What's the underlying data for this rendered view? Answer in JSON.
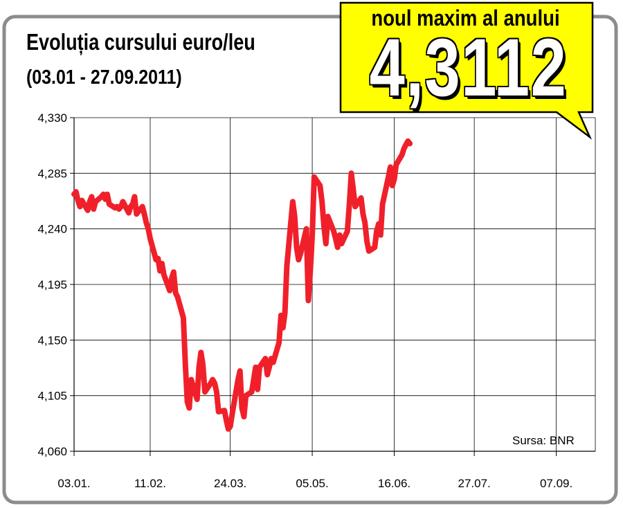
{
  "title": "Evoluția cursului euro/leu",
  "subtitle": "(03.01 - 27.09.2011)",
  "callout": {
    "label": "noul maxim al anului",
    "value": "4,3112"
  },
  "source": "Sursa: BNR",
  "colors": {
    "line": "#f0202a",
    "callout_fill": "#ffff00",
    "frame": "#8c8c8c",
    "grid": "#000000"
  },
  "chart_data": {
    "type": "line",
    "title": "Evoluția cursului euro/leu",
    "subtitle": "(03.01 - 27.09.2011)",
    "xlabel": "",
    "ylabel": "",
    "ylim": [
      4.06,
      4.33
    ],
    "y_ticks": [
      "4,330",
      "4,285",
      "4,240",
      "4,195",
      "4,150",
      "4,105",
      "4,060"
    ],
    "y_tick_values": [
      4.33,
      4.285,
      4.24,
      4.195,
      4.15,
      4.105,
      4.06
    ],
    "x_ticks": [
      "03.01.",
      "11.02.",
      "24.03.",
      "05.05.",
      "16.06.",
      "27.07.",
      "07.09."
    ],
    "x_tick_dates": [
      "2011-01-03",
      "2011-02-11",
      "2011-03-24",
      "2011-05-05",
      "2011-06-16",
      "2011-07-27",
      "2011-09-07"
    ],
    "grid": true,
    "x_end_date": "2011-09-27",
    "series": [
      {
        "values": [
          [
            "2011-01-03",
            4.268
          ],
          [
            "2011-01-04",
            4.27
          ],
          [
            "2011-01-05",
            4.263
          ],
          [
            "2011-01-06",
            4.258
          ],
          [
            "2011-01-07",
            4.263
          ],
          [
            "2011-01-10",
            4.255
          ],
          [
            "2011-01-11",
            4.262
          ],
          [
            "2011-01-12",
            4.266
          ],
          [
            "2011-01-13",
            4.256
          ],
          [
            "2011-01-14",
            4.262
          ],
          [
            "2011-01-17",
            4.266
          ],
          [
            "2011-01-18",
            4.268
          ],
          [
            "2011-01-19",
            4.264
          ],
          [
            "2011-01-20",
            4.268
          ],
          [
            "2011-01-21",
            4.26
          ],
          [
            "2011-01-24",
            4.257
          ],
          [
            "2011-01-25",
            4.258
          ],
          [
            "2011-01-26",
            4.256
          ],
          [
            "2011-01-27",
            4.258
          ],
          [
            "2011-01-28",
            4.262
          ],
          [
            "2011-01-31",
            4.253
          ],
          [
            "2011-02-01",
            4.258
          ],
          [
            "2011-02-02",
            4.26
          ],
          [
            "2011-02-03",
            4.266
          ],
          [
            "2011-02-04",
            4.252
          ],
          [
            "2011-02-07",
            4.258
          ],
          [
            "2011-02-08",
            4.252
          ],
          [
            "2011-02-09",
            4.245
          ],
          [
            "2011-02-10",
            4.24
          ],
          [
            "2011-02-11",
            4.232
          ],
          [
            "2011-02-14",
            4.215
          ],
          [
            "2011-02-15",
            4.216
          ],
          [
            "2011-02-16",
            4.206
          ],
          [
            "2011-02-17",
            4.212
          ],
          [
            "2011-02-18",
            4.203
          ],
          [
            "2011-02-21",
            4.19
          ],
          [
            "2011-02-22",
            4.2
          ],
          [
            "2011-02-23",
            4.205
          ],
          [
            "2011-02-24",
            4.188
          ],
          [
            "2011-02-25",
            4.185
          ],
          [
            "2011-02-28",
            4.168
          ],
          [
            "2011-03-01",
            4.13
          ],
          [
            "2011-03-02",
            4.1
          ],
          [
            "2011-03-03",
            4.095
          ],
          [
            "2011-03-04",
            4.118
          ],
          [
            "2011-03-07",
            4.102
          ],
          [
            "2011-03-08",
            4.128
          ],
          [
            "2011-03-09",
            4.14
          ],
          [
            "2011-03-10",
            4.13
          ],
          [
            "2011-03-11",
            4.108
          ],
          [
            "2011-03-14",
            4.115
          ],
          [
            "2011-03-15",
            4.118
          ],
          [
            "2011-03-16",
            4.115
          ],
          [
            "2011-03-17",
            4.108
          ],
          [
            "2011-03-18",
            4.092
          ],
          [
            "2011-03-21",
            4.093
          ],
          [
            "2011-03-22",
            4.085
          ],
          [
            "2011-03-23",
            4.078
          ],
          [
            "2011-03-24",
            4.08
          ],
          [
            "2011-03-25",
            4.09
          ],
          [
            "2011-03-28",
            4.118
          ],
          [
            "2011-03-29",
            4.125
          ],
          [
            "2011-03-30",
            4.095
          ],
          [
            "2011-03-31",
            4.088
          ],
          [
            "2011-04-01",
            4.105
          ],
          [
            "2011-04-04",
            4.108
          ],
          [
            "2011-04-05",
            4.118
          ],
          [
            "2011-04-06",
            4.128
          ],
          [
            "2011-04-07",
            4.11
          ],
          [
            "2011-04-08",
            4.128
          ],
          [
            "2011-04-11",
            4.135
          ],
          [
            "2011-04-12",
            4.122
          ],
          [
            "2011-04-13",
            4.128
          ],
          [
            "2011-04-14",
            4.135
          ],
          [
            "2011-04-15",
            4.132
          ],
          [
            "2011-04-18",
            4.148
          ],
          [
            "2011-04-19",
            4.17
          ],
          [
            "2011-04-20",
            4.16
          ],
          [
            "2011-04-21",
            4.172
          ],
          [
            "2011-04-22",
            4.21
          ],
          [
            "2011-04-25",
            4.262
          ],
          [
            "2011-04-26",
            4.25
          ],
          [
            "2011-04-27",
            4.225
          ],
          [
            "2011-04-28",
            4.215
          ],
          [
            "2011-04-29",
            4.22
          ],
          [
            "2011-05-02",
            4.24
          ],
          [
            "2011-05-03",
            4.182
          ],
          [
            "2011-05-04",
            4.205
          ],
          [
            "2011-05-05",
            4.235
          ],
          [
            "2011-05-06",
            4.282
          ],
          [
            "2011-05-09",
            4.275
          ],
          [
            "2011-05-10",
            4.262
          ],
          [
            "2011-05-11",
            4.242
          ],
          [
            "2011-05-12",
            4.228
          ],
          [
            "2011-05-13",
            4.25
          ],
          [
            "2011-05-16",
            4.238
          ],
          [
            "2011-05-17",
            4.232
          ],
          [
            "2011-05-18",
            4.225
          ],
          [
            "2011-05-19",
            4.235
          ],
          [
            "2011-05-20",
            4.228
          ],
          [
            "2011-05-23",
            4.238
          ],
          [
            "2011-05-24",
            4.26
          ],
          [
            "2011-05-25",
            4.285
          ],
          [
            "2011-05-26",
            4.272
          ],
          [
            "2011-05-27",
            4.258
          ],
          [
            "2011-05-30",
            4.265
          ],
          [
            "2011-05-31",
            4.252
          ],
          [
            "2011-06-01",
            4.245
          ],
          [
            "2011-06-02",
            4.23
          ],
          [
            "2011-06-03",
            4.222
          ],
          [
            "2011-06-06",
            4.225
          ],
          [
            "2011-06-07",
            4.238
          ],
          [
            "2011-06-08",
            4.244
          ],
          [
            "2011-06-09",
            4.235
          ],
          [
            "2011-06-10",
            4.26
          ],
          [
            "2011-06-13",
            4.282
          ],
          [
            "2011-06-14",
            4.29
          ],
          [
            "2011-06-15",
            4.275
          ],
          [
            "2011-06-16",
            4.28
          ],
          [
            "2011-06-17",
            4.292
          ],
          [
            "2011-06-20",
            4.3
          ],
          [
            "2011-06-21",
            4.305
          ],
          [
            "2011-06-22",
            4.308
          ],
          [
            "2011-06-23",
            4.311
          ],
          [
            "2011-06-24",
            4.309
          ]
        ]
      }
    ]
  }
}
